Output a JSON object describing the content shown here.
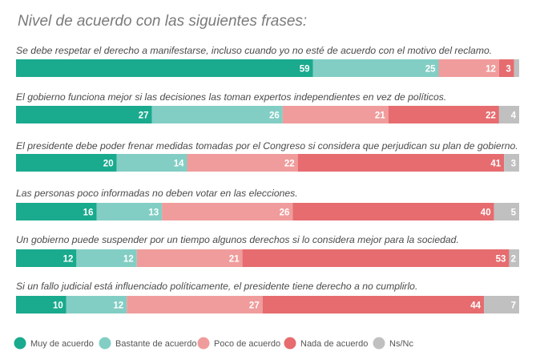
{
  "title": "Nivel de acuerdo con las siguientes frases:",
  "colors": {
    "muy": "#1aaa8e",
    "bastante": "#82cec4",
    "poco": "#f09c9c",
    "nada": "#e66c6f",
    "nsnc": "#c0c0c0"
  },
  "chart_data": {
    "type": "bar",
    "stacked": true,
    "orientation": "horizontal",
    "title": "Nivel de acuerdo con las siguientes frases:",
    "categories": [
      "Se debe respetar el derecho a manifestarse, incluso cuando yo no esté de acuerdo con el motivo del reclamo.",
      "El gobierno funciona mejor si las decisiones las toman expertos independientes en vez de políticos.",
      "El presidente debe poder frenar medidas tomadas por el Congreso si considera que perjudican su plan de gobierno.",
      "Las personas poco informadas no deben votar en las elecciones.",
      "Un gobierno puede suspender por un tiempo algunos derechos si lo considera mejor para la sociedad.",
      "Si un fallo judicial está influenciado políticamente, el presidente tiene derecho a no cumplirlo."
    ],
    "series": [
      {
        "name": "Muy de acuerdo",
        "key": "muy",
        "values": [
          59,
          27,
          20,
          16,
          12,
          10
        ]
      },
      {
        "name": "Bastante de acuerdo",
        "key": "bastante",
        "values": [
          25,
          26,
          14,
          13,
          12,
          12
        ]
      },
      {
        "name": "Poco de acuerdo",
        "key": "poco",
        "values": [
          12,
          21,
          22,
          26,
          21,
          27
        ]
      },
      {
        "name": "Nada de acuerdo",
        "key": "nada",
        "values": [
          3,
          22,
          41,
          40,
          53,
          44
        ]
      },
      {
        "name": "Ns/Nc",
        "key": "nsnc",
        "values": [
          1,
          4,
          3,
          5,
          2,
          7
        ]
      }
    ],
    "value_labels": [
      [
        "59",
        "25",
        "12",
        "3",
        ""
      ],
      [
        "27",
        "26",
        "21",
        "22",
        "4"
      ],
      [
        "20",
        "14",
        "22",
        "41",
        "3"
      ],
      [
        "16",
        "13",
        "26",
        "40",
        "5"
      ],
      [
        "12",
        "12",
        "21",
        "53",
        "2"
      ],
      [
        "10",
        "12",
        "27",
        "44",
        "7"
      ]
    ],
    "xlim": [
      0,
      100
    ],
    "legend": "bottom",
    "grid": false
  }
}
